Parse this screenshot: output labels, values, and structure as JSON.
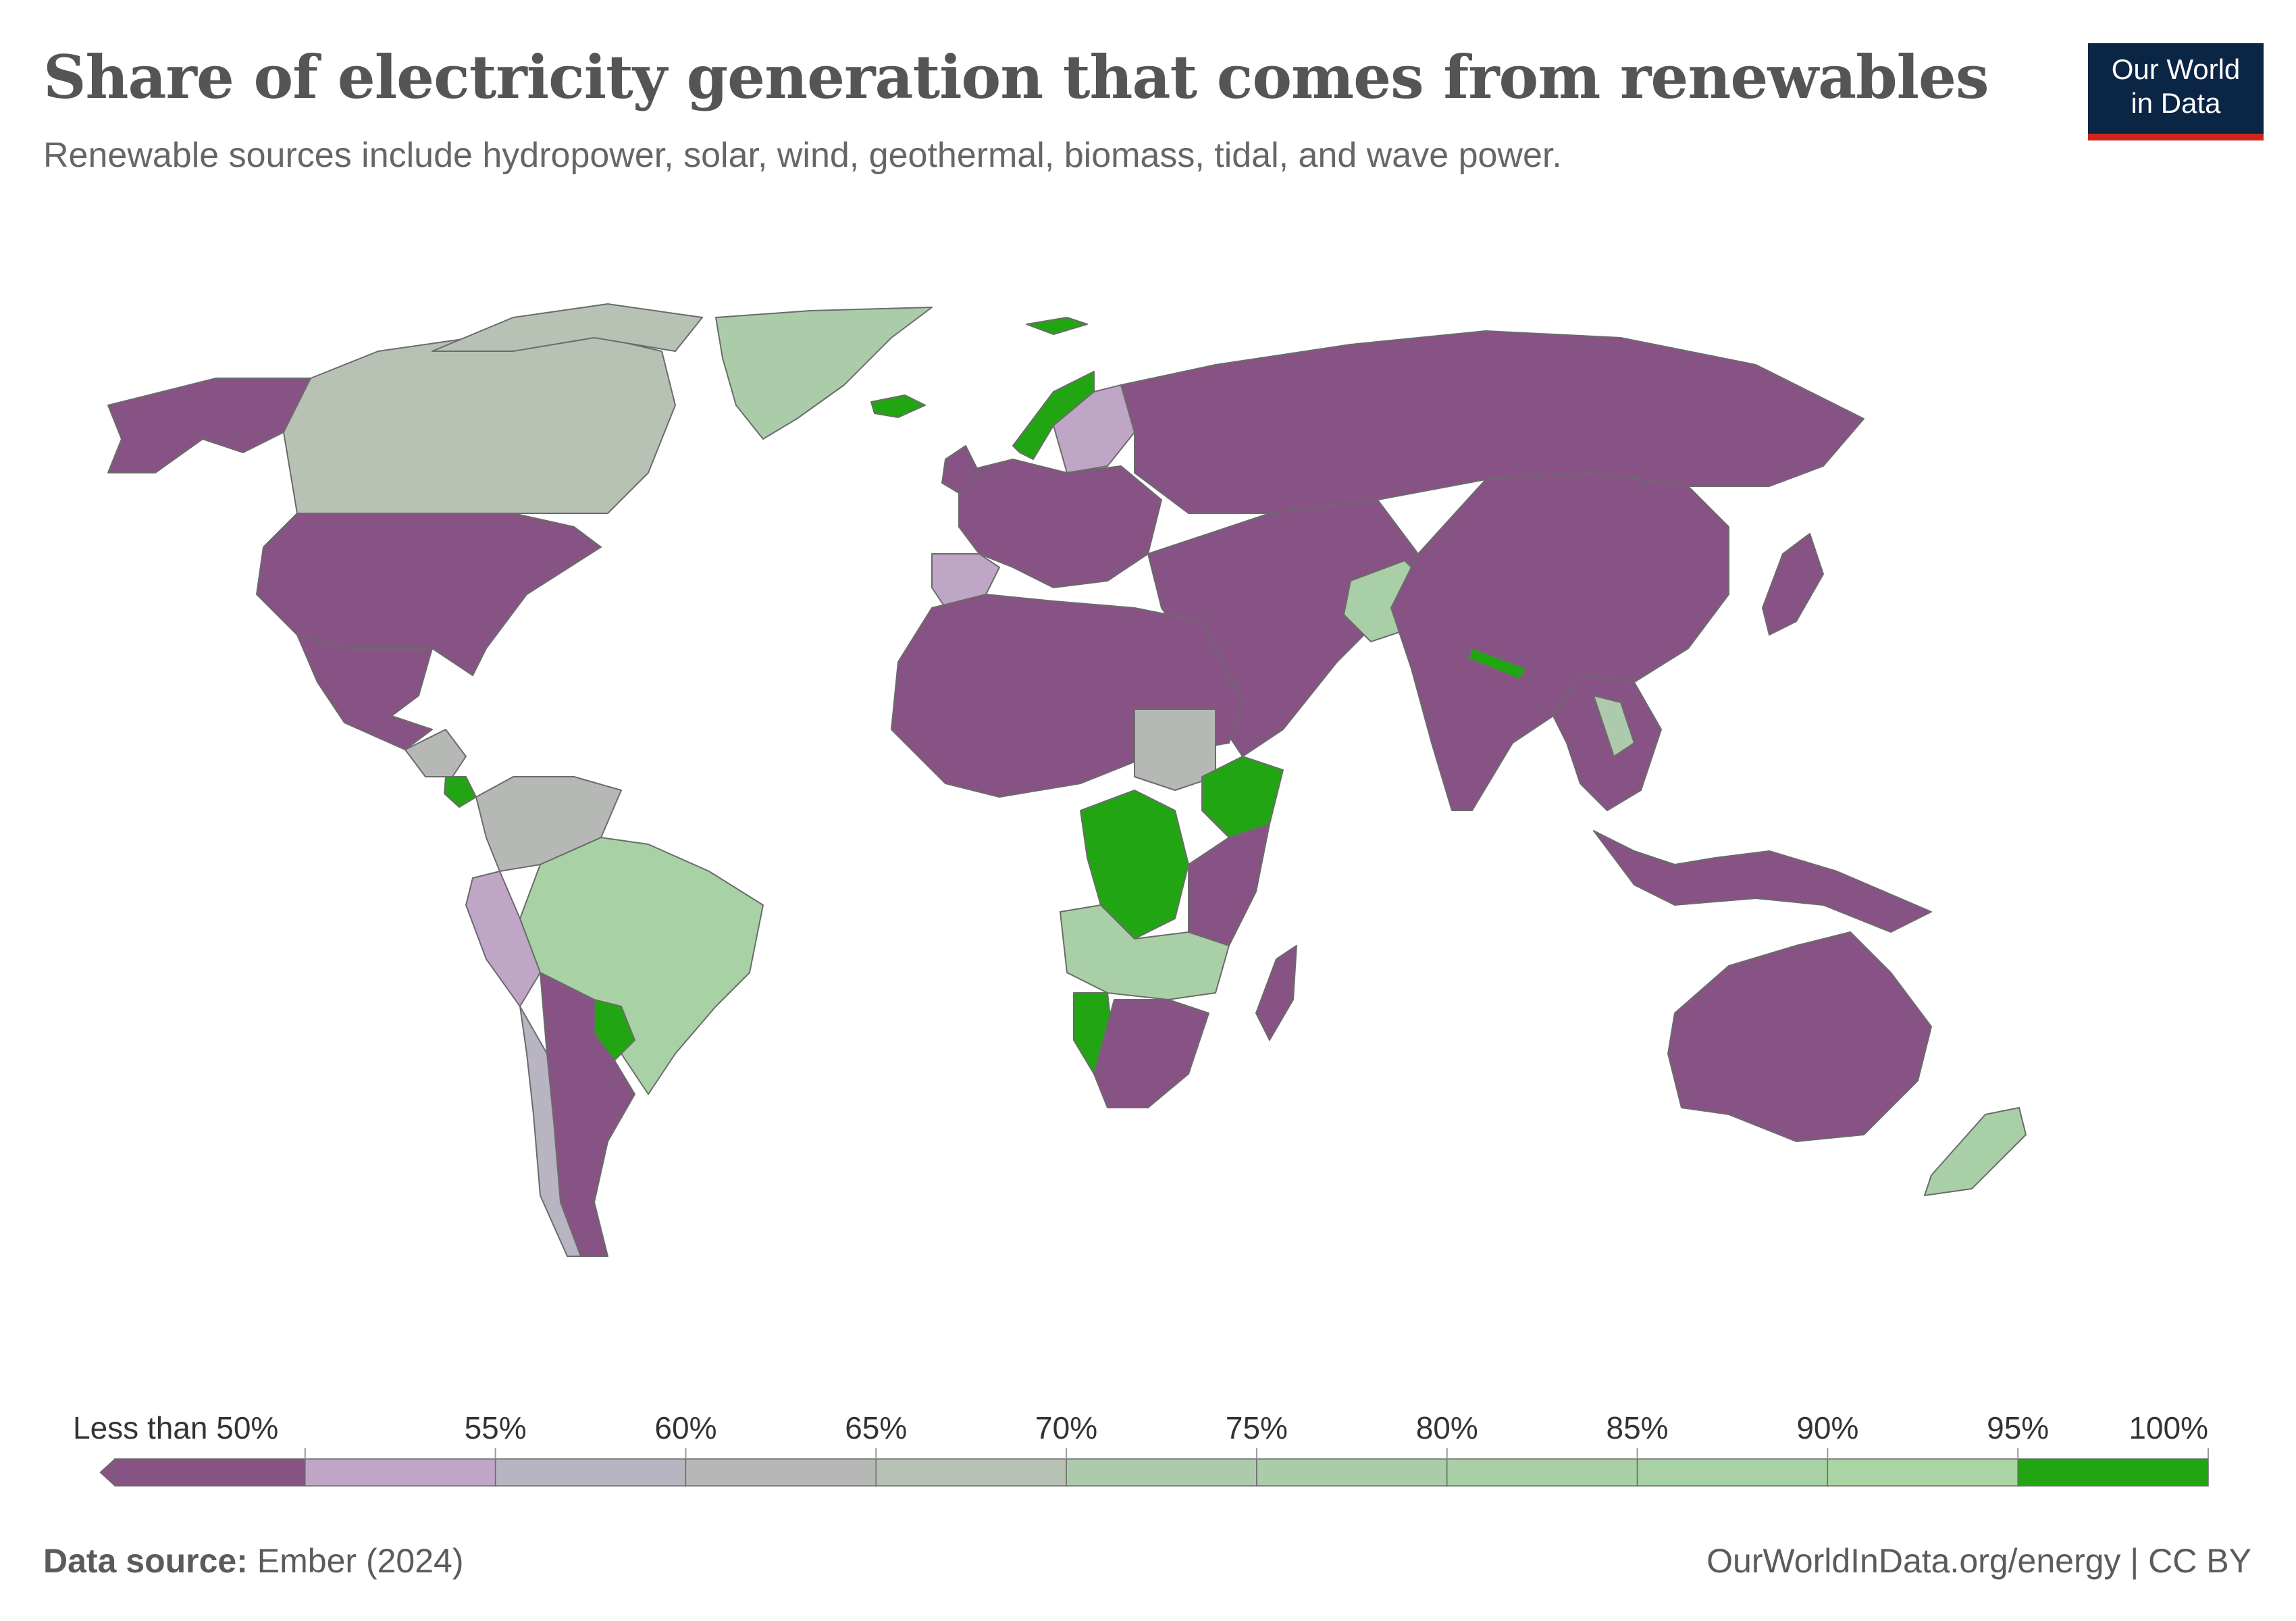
{
  "header": {
    "title": "Share of electricity generation that comes from renewables",
    "subtitle": "Renewable sources include hydropower, solar, wind, geothermal, biomass, tidal, and wave power."
  },
  "logo": {
    "line1": "Our World",
    "line2": "in Data",
    "background": "#0b2545",
    "accent": "#ce261e"
  },
  "legend": {
    "labels": [
      "Less than 50%",
      "55%",
      "60%",
      "65%",
      "70%",
      "75%",
      "80%",
      "85%",
      "90%",
      "95%",
      "100%"
    ],
    "bins": [
      {
        "range": "<50%",
        "color": "#875384"
      },
      {
        "range": "50-55%",
        "color": "#bfa6c6"
      },
      {
        "range": "55-60%",
        "color": "#b8b4c1"
      },
      {
        "range": "60-65%",
        "color": "#b6b8b6"
      },
      {
        "range": "65-70%",
        "color": "#b7c2b5"
      },
      {
        "range": "70-75%",
        "color": "#aecaad"
      },
      {
        "range": "75-80%",
        "color": "#aacca9"
      },
      {
        "range": "80-85%",
        "color": "#a9cfa7"
      },
      {
        "range": "85-90%",
        "color": "#a8d2a5"
      },
      {
        "range": "90-95%",
        "color": "#a8d5a3"
      },
      {
        "range": "95-100%",
        "color": "#22a512"
      }
    ]
  },
  "map": {
    "regions": [
      {
        "name": "Canada",
        "bin": 4
      },
      {
        "name": "Greenland",
        "bin": 6
      },
      {
        "name": "Alaska / United States",
        "bin": 0
      },
      {
        "name": "Mexico",
        "bin": 0
      },
      {
        "name": "Central America",
        "bin": 3
      },
      {
        "name": "Costa Rica",
        "bin": 10
      },
      {
        "name": "Colombia / Venezuela",
        "bin": 3
      },
      {
        "name": "Brazil",
        "bin": 8
      },
      {
        "name": "Peru",
        "bin": 1
      },
      {
        "name": "Paraguay",
        "bin": 10
      },
      {
        "name": "Argentina / Bolivia",
        "bin": 0
      },
      {
        "name": "Chile",
        "bin": 2
      },
      {
        "name": "Iceland",
        "bin": 10
      },
      {
        "name": "Norway",
        "bin": 10
      },
      {
        "name": "Sweden / Finland",
        "bin": 1
      },
      {
        "name": "Spain",
        "bin": 1
      },
      {
        "name": "Europe (rest)",
        "bin": 0
      },
      {
        "name": "Russia",
        "bin": 0
      },
      {
        "name": "North Africa",
        "bin": 0
      },
      {
        "name": "Sudan",
        "bin": 3
      },
      {
        "name": "Ethiopia",
        "bin": 10
      },
      {
        "name": "DR Congo",
        "bin": 10
      },
      {
        "name": "Angola / Zambia",
        "bin": 7
      },
      {
        "name": "Namibia",
        "bin": 10
      },
      {
        "name": "South Africa",
        "bin": 0
      },
      {
        "name": "Madagascar",
        "bin": 0
      },
      {
        "name": "Middle East / Central Asia",
        "bin": 0
      },
      {
        "name": "Afghanistan / Tajikistan",
        "bin": 7
      },
      {
        "name": "Nepal / Bhutan",
        "bin": 10
      },
      {
        "name": "India / China",
        "bin": 0
      },
      {
        "name": "Southeast Asia",
        "bin": 0
      },
      {
        "name": "Laos",
        "bin": 5
      },
      {
        "name": "Indonesia / PNG",
        "bin": 0
      },
      {
        "name": "Australia",
        "bin": 0
      },
      {
        "name": "New Zealand",
        "bin": 7
      }
    ]
  },
  "footer": {
    "source_label": "Data source:",
    "source_value": "Ember (2024)",
    "right": "OurWorldInData.org/energy | CC BY"
  }
}
